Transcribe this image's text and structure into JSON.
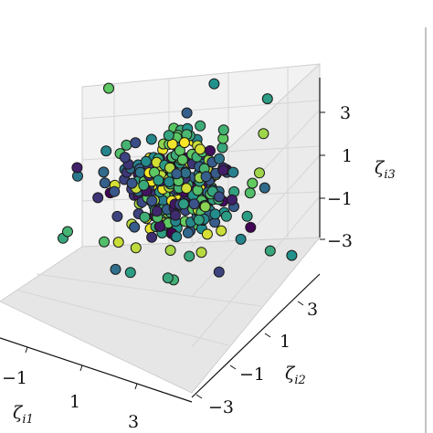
{
  "chart_data": {
    "type": "scatter",
    "projection": "3d",
    "title": "",
    "axes": {
      "x": {
        "label": "ζ",
        "label_subscript": "i1",
        "ticks": [
          -1,
          1,
          3
        ],
        "tick_labels": [
          "−1",
          "1",
          "3"
        ],
        "range": [
          -4,
          4
        ]
      },
      "y": {
        "label": "ζ",
        "label_subscript": "i2",
        "ticks": [
          -3,
          -1,
          1,
          3
        ],
        "tick_labels": [
          "−3",
          "−1",
          "1",
          "3"
        ],
        "range": [
          -4,
          4
        ]
      },
      "z": {
        "label": "ζ",
        "label_subscript": "i3",
        "ticks": [
          -3,
          -1,
          1,
          3
        ],
        "tick_labels": [
          "−3",
          "−1",
          "1",
          "3"
        ],
        "range": [
          -4,
          4
        ]
      }
    },
    "grid": true,
    "colormap": "viridis (colors range from dark blue through teal and green to yellow)",
    "marker": {
      "shape": "circle",
      "edgecolor": "#1a1a1a"
    },
    "points": [
      {
        "x": -0.6,
        "y": 2.5,
        "z": 3.3,
        "c": 0.5
      },
      {
        "x": 0.8,
        "y": 3.5,
        "z": 2.8,
        "c": 0.55
      },
      {
        "x": -3.6,
        "y": 0.8,
        "z": 2.5,
        "c": 0.75
      },
      {
        "x": 1.9,
        "y": 2.0,
        "z": 2.4,
        "c": 0.85
      },
      {
        "x": -1.0,
        "y": -2.4,
        "z": 2.3,
        "c": 0.45
      },
      {
        "x": 2.2,
        "y": -0.4,
        "z": 3.0,
        "c": 0.6
      },
      {
        "x": 3.0,
        "y": 0.5,
        "z": 1.8,
        "c": 0.85
      },
      {
        "x": 3.2,
        "y": -0.2,
        "z": 1.3,
        "c": 0.7
      },
      {
        "x": 2.8,
        "y": 1.0,
        "z": 0.8,
        "c": 0.35
      },
      {
        "x": -2.2,
        "y": -2.4,
        "z": 0.6,
        "c": 0.4
      },
      {
        "x": -2.9,
        "y": -1.6,
        "z": 0.3,
        "c": 0.1
      },
      {
        "x": 2.4,
        "y": 0.6,
        "z": -0.5,
        "c": 0.55
      },
      {
        "x": 2.3,
        "y": 0.4,
        "z": -1.5,
        "c": 0.45
      },
      {
        "x": 3.2,
        "y": 0.8,
        "z": -1.8,
        "c": 0.6
      },
      {
        "x": 3.6,
        "y": 1.4,
        "z": -2.1,
        "c": 0.5
      },
      {
        "x": 2.4,
        "y": -0.8,
        "z": -2.4,
        "c": 0.2
      },
      {
        "x": -2.9,
        "y": -2.3,
        "z": -2.6,
        "c": 0.6
      },
      {
        "x": -3.3,
        "y": -1.6,
        "z": -2.8,
        "c": 0.65
      },
      {
        "x": -2.1,
        "y": -1.2,
        "z": -2.9,
        "c": 0.7
      },
      {
        "x": -0.4,
        "y": -1.9,
        "z": -3.2,
        "c": 0.55
      },
      {
        "x": 0.5,
        "y": -1.1,
        "z": -3.4,
        "c": 0.6
      },
      {
        "x": 0.0,
        "y": -2.1,
        "z": -1.8,
        "c": 0.9
      },
      {
        "x": 1.4,
        "y": -1.1,
        "z": -2.0,
        "c": 0.6
      },
      {
        "x": 1.0,
        "y": 1.5,
        "z": -0.8,
        "c": 0.1
      },
      {
        "x": -1.5,
        "y": -0.8,
        "z": 1.6,
        "c": 0.65
      },
      {
        "x": 0.2,
        "y": 2.0,
        "z": 1.4,
        "c": 0.75
      }
    ]
  }
}
